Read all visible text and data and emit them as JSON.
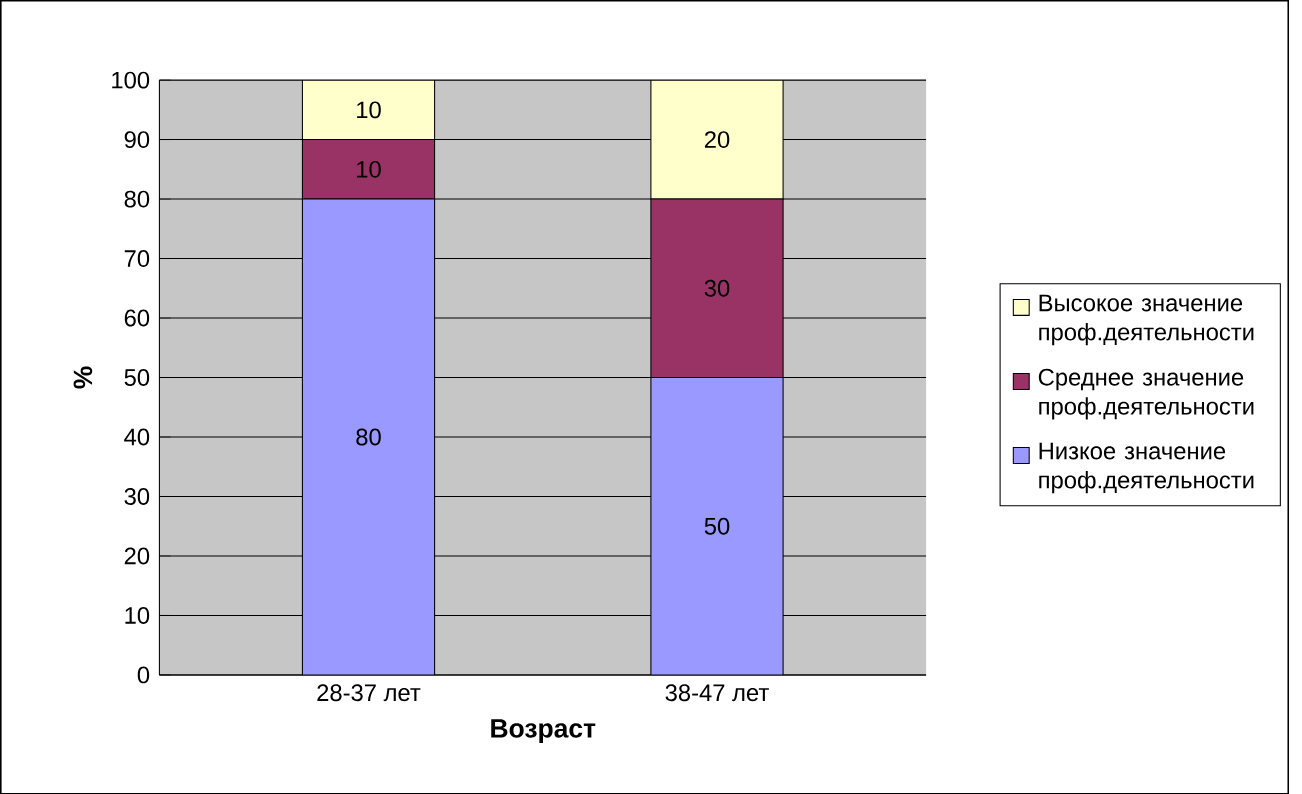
{
  "chart_data": {
    "type": "bar",
    "stacked": true,
    "xlabel": "Возраст",
    "ylabel": "%",
    "categories": [
      "28-37 лет",
      "38-47 лет"
    ],
    "series": [
      {
        "name": "Низкое значение проф.деятельности",
        "color": "#9999ff",
        "values": [
          80,
          50
        ]
      },
      {
        "name": "Среднее значение проф.деятельности",
        "color": "#993366",
        "values": [
          10,
          30
        ]
      },
      {
        "name": "Высокое значение проф.деятельности",
        "color": "#ffffcc",
        "values": [
          10,
          20
        ]
      }
    ],
    "ylim": [
      0,
      100
    ],
    "yticks": [
      0,
      10,
      20,
      30,
      40,
      50,
      60,
      70,
      80,
      90,
      100
    ],
    "grid": "y",
    "legend": "right",
    "data_labels": true
  }
}
